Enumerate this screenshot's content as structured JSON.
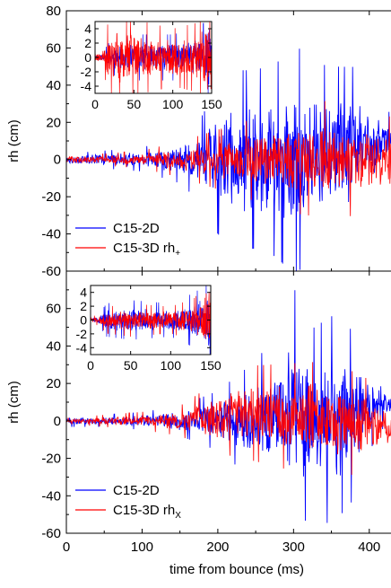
{
  "chart_data": [
    {
      "type": "line",
      "panel": "top",
      "xlabel": "",
      "ylabel": "rh (cm)",
      "xlim": [
        0,
        450
      ],
      "ylim": [
        -60,
        80
      ],
      "yticks": [
        -60,
        -40,
        -20,
        0,
        20,
        40,
        60,
        80
      ],
      "ytick_labels": [
        "-60",
        "-40",
        "-20",
        "0",
        "20",
        "40",
        "60",
        "80"
      ],
      "legend_position": "bottom-left",
      "series": [
        {
          "name": "C15-2D",
          "color": "#0000ff",
          "envelope": {
            "t": [
              0,
              50,
              100,
              150,
              180,
              200,
              220,
              250,
              280,
              300,
              320,
              350,
              380,
              400,
              420,
              440,
              450
            ],
            "amp": [
              2,
              3,
              4,
              8,
              15,
              25,
              30,
              30,
              33,
              40,
              33,
              30,
              28,
              22,
              10,
              8,
              8
            ],
            "center": [
              0,
              0,
              0,
              0,
              0,
              0,
              0,
              0,
              0,
              0,
              0,
              2,
              5,
              8,
              10,
              12,
              12
            ]
          }
        },
        {
          "name": "C15-3D rh+",
          "label_main": "C15-3D rh",
          "label_sub": "+",
          "color": "#ff0000",
          "envelope": {
            "t": [
              0,
              50,
              100,
              150,
              200,
              250,
              300,
              350,
              400,
              430,
              440
            ],
            "amp": [
              2,
              2,
              3,
              6,
              10,
              14,
              18,
              20,
              18,
              14,
              10
            ],
            "center": [
              0,
              0,
              0,
              0,
              0,
              0,
              0,
              0,
              0,
              0,
              0
            ]
          }
        }
      ],
      "inset": {
        "xlim": [
          0,
          150
        ],
        "ylim": [
          -5,
          5
        ],
        "xticks": [
          0,
          50,
          100,
          150
        ],
        "xtick_labels": [
          "0",
          "50",
          "100",
          "150"
        ],
        "yticks": [
          -4,
          -2,
          0,
          2,
          4
        ],
        "ytick_labels": [
          "-4",
          "-2",
          "0",
          "2",
          "4"
        ],
        "series": [
          {
            "name": "C15-2D",
            "color": "#0000ff",
            "envelope": {
              "t": [
                0,
                10,
                20,
                50,
                100,
                130,
                140,
                145,
                150
              ],
              "amp": [
                0.3,
                0.5,
                1.5,
                2,
                2,
                2.5,
                3,
                5,
                5
              ],
              "center": [
                0,
                0,
                0,
                0,
                0,
                0,
                0,
                0,
                0
              ]
            }
          },
          {
            "name": "C15-3D rh+",
            "color": "#ff0000",
            "envelope": {
              "t": [
                0,
                10,
                20,
                40,
                70,
                100,
                130,
                145,
                150
              ],
              "amp": [
                0.3,
                1,
                4,
                3.5,
                3,
                2.5,
                3,
                5,
                5
              ],
              "center": [
                0,
                0,
                0,
                0,
                0,
                0,
                0,
                0,
                0
              ]
            }
          }
        ]
      }
    },
    {
      "type": "line",
      "panel": "bottom",
      "xlabel": "time from bounce (ms)",
      "ylabel": "rh (cm)",
      "xlim": [
        0,
        450
      ],
      "ylim": [
        -60,
        80
      ],
      "xticks": [
        0,
        100,
        200,
        300,
        400
      ],
      "xtick_labels": [
        "0",
        "100",
        "200",
        "300",
        "400"
      ],
      "yticks": [
        -60,
        -40,
        -20,
        0,
        20,
        40,
        60
      ],
      "ytick_labels": [
        "-60",
        "-40",
        "-20",
        "0",
        "20",
        "40",
        "60"
      ],
      "legend_position": "bottom-left",
      "series": [
        {
          "name": "C15-2D",
          "color": "#0000ff",
          "envelope": {
            "t": [
              0,
              50,
              100,
              150,
              200,
              250,
              280,
              300,
              320,
              350,
              380,
              400,
              420,
              440,
              450
            ],
            "amp": [
              2,
              2,
              3,
              5,
              10,
              20,
              30,
              45,
              30,
              35,
              28,
              15,
              8,
              6,
              6
            ],
            "center": [
              0,
              0,
              0,
              0,
              0,
              0,
              0,
              0,
              0,
              0,
              3,
              8,
              10,
              12,
              12
            ]
          }
        },
        {
          "name": "C15-3D rhx",
          "label_main": "C15-3D rh",
          "label_sub": "X",
          "color": "#ff0000",
          "envelope": {
            "t": [
              0,
              50,
              100,
              150,
              200,
              250,
              300,
              350,
              400,
              420,
              430,
              440
            ],
            "amp": [
              1,
              2,
              3,
              5,
              12,
              16,
              18,
              20,
              15,
              10,
              8,
              5
            ],
            "center": [
              0,
              0,
              0,
              0,
              2,
              4,
              2,
              0,
              -2,
              -3,
              -5,
              -5
            ]
          }
        }
      ],
      "inset": {
        "xlim": [
          0,
          150
        ],
        "ylim": [
          -5,
          5
        ],
        "xticks": [
          0,
          50,
          100,
          150
        ],
        "xtick_labels": [
          "0",
          "50",
          "100",
          "150"
        ],
        "yticks": [
          -4,
          -2,
          0,
          2,
          4
        ],
        "ytick_labels": [
          "-4",
          "-2",
          "0",
          "2",
          "4"
        ],
        "series": [
          {
            "name": "C15-2D",
            "color": "#0000ff",
            "envelope": {
              "t": [
                0,
                10,
                20,
                50,
                100,
                130,
                140,
                145,
                150
              ],
              "amp": [
                0.3,
                0.5,
                1.5,
                1.8,
                1.5,
                2.5,
                3,
                4.5,
                4.5
              ],
              "center": [
                0,
                0,
                0,
                0,
                0,
                0,
                0,
                0,
                0
              ]
            }
          },
          {
            "name": "C15-3D rhx",
            "color": "#ff0000",
            "envelope": {
              "t": [
                0,
                10,
                20,
                50,
                100,
                130,
                140,
                145,
                150
              ],
              "amp": [
                0.3,
                0.5,
                1.2,
                1.5,
                1.2,
                2,
                3,
                4.5,
                4.5
              ],
              "center": [
                0,
                0,
                0,
                0,
                0,
                0,
                0,
                0,
                0
              ]
            }
          }
        ]
      }
    }
  ]
}
